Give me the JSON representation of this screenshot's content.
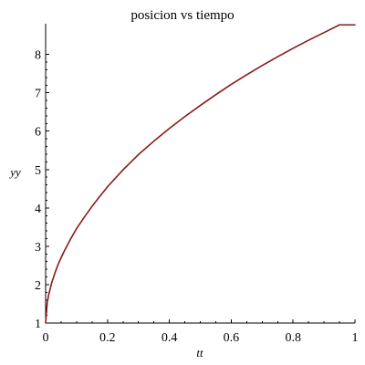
{
  "chart_data": {
    "type": "line",
    "title": "posicion vs tiempo",
    "xlabel": "tt",
    "ylabel": "yy",
    "xlim": [
      0,
      1
    ],
    "ylim": [
      1,
      8.8
    ],
    "x_ticks": [
      "0",
      "0.2",
      "0.4",
      "0.6",
      "0.8",
      "1"
    ],
    "y_ticks": [
      "1",
      "2",
      "3",
      "4",
      "5",
      "6",
      "7",
      "8"
    ],
    "grid": false,
    "legend": "none",
    "series": [
      {
        "color": "#8b1a1a",
        "x": [
          0,
          0.005,
          0.01,
          0.02,
          0.03,
          0.04,
          0.05,
          0.06,
          0.08,
          0.1,
          0.125,
          0.15,
          0.175,
          0.2,
          0.25,
          0.3,
          0.35,
          0.4,
          0.45,
          0.5,
          0.55,
          0.6,
          0.65,
          0.7,
          0.75,
          0.8,
          0.85,
          0.9,
          0.95,
          1.0
        ],
        "y": [
          1.0,
          1.52,
          1.74,
          2.06,
          2.3,
          2.52,
          2.7,
          2.87,
          3.18,
          3.46,
          3.76,
          4.04,
          4.3,
          4.55,
          4.99,
          5.39,
          5.74,
          6.07,
          6.38,
          6.67,
          6.95,
          7.22,
          7.47,
          7.71,
          7.94,
          8.16,
          8.37,
          8.57,
          8.77,
          8.77
        ]
      }
    ]
  }
}
